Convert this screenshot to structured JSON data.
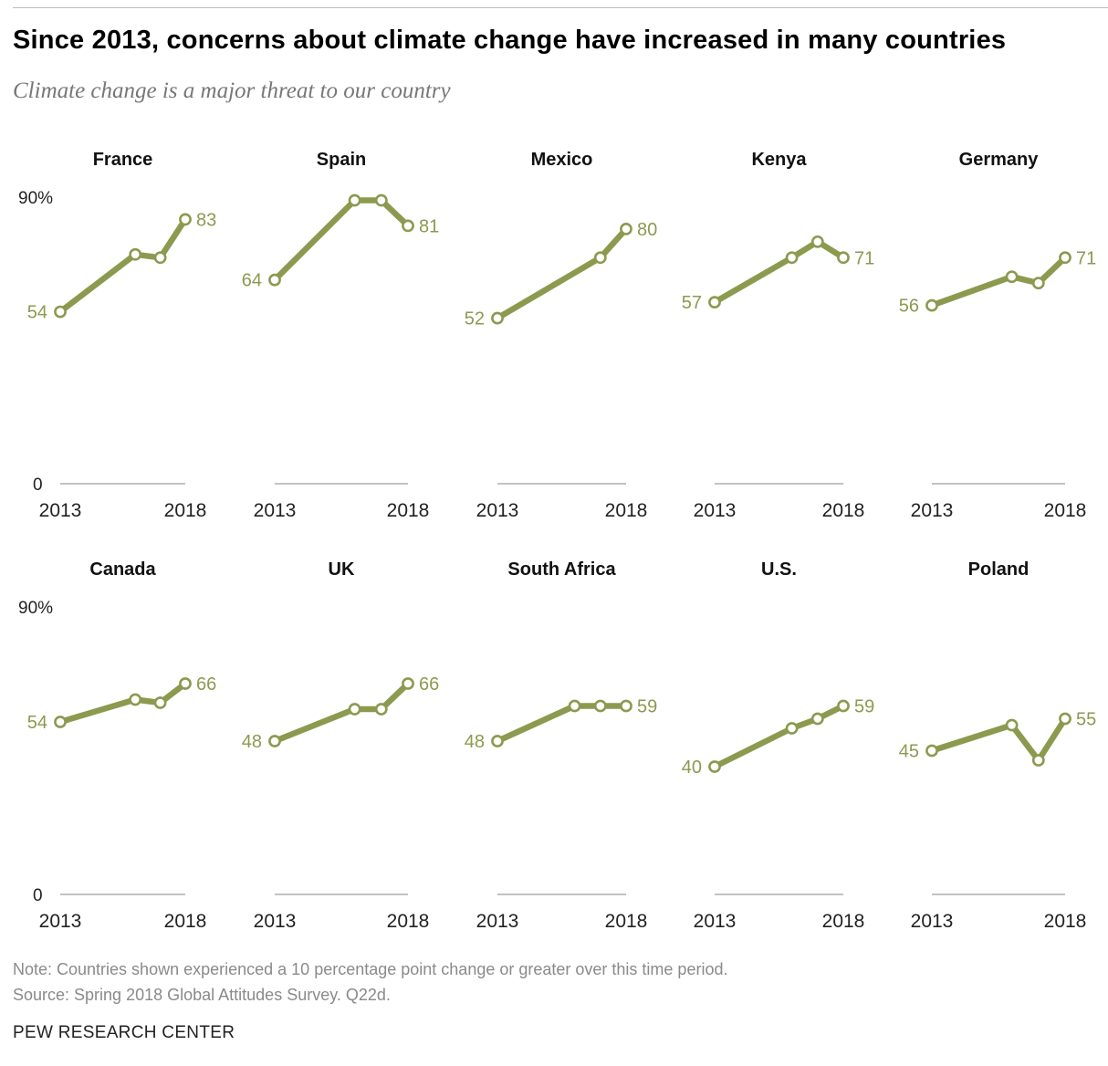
{
  "header": {
    "title": "Since 2013, concerns about climate change have increased in many countries",
    "subtitle": "Climate change is a major threat to our country"
  },
  "footer": {
    "note": "Note: Countries shown experienced a 10 percentage point change or greater over this time period.",
    "source": "Source: Spring 2018 Global Attitudes Survey. Q22d.",
    "organization": "PEW RESEARCH CENTER"
  },
  "colors": {
    "line": "#8c9a4f",
    "label": "#8c9a4f",
    "baseline": "#9e9e9e"
  },
  "chart_data": [
    {
      "type": "line",
      "title": "France",
      "x_tick_labels": [
        "2013",
        "2018"
      ],
      "y_tick_labels": [
        "90%",
        "0"
      ],
      "ylim": [
        0,
        90
      ],
      "x": [
        2013,
        2016,
        2017,
        2018
      ],
      "values": [
        54,
        72,
        71,
        83
      ],
      "labels": {
        "first": "54",
        "last": "83"
      }
    },
    {
      "type": "line",
      "title": "Spain",
      "x_tick_labels": [
        "2013",
        "2018"
      ],
      "ylim": [
        0,
        90
      ],
      "x": [
        2013,
        2016,
        2017,
        2018
      ],
      "values": [
        64,
        89,
        89,
        81
      ],
      "labels": {
        "first": "64",
        "last": "81"
      }
    },
    {
      "type": "line",
      "title": "Mexico",
      "x_tick_labels": [
        "2013",
        "2018"
      ],
      "ylim": [
        0,
        90
      ],
      "x": [
        2013,
        2017,
        2018
      ],
      "values": [
        52,
        71,
        80
      ],
      "labels": {
        "first": "52",
        "last": "80"
      }
    },
    {
      "type": "line",
      "title": "Kenya",
      "x_tick_labels": [
        "2013",
        "2018"
      ],
      "ylim": [
        0,
        90
      ],
      "x": [
        2013,
        2016,
        2017,
        2018
      ],
      "values": [
        57,
        71,
        76,
        71
      ],
      "labels": {
        "first": "57",
        "last": "71"
      }
    },
    {
      "type": "line",
      "title": "Germany",
      "x_tick_labels": [
        "2013",
        "2018"
      ],
      "ylim": [
        0,
        90
      ],
      "x": [
        2013,
        2016,
        2017,
        2018
      ],
      "values": [
        56,
        65,
        63,
        71
      ],
      "labels": {
        "first": "56",
        "last": "71"
      }
    },
    {
      "type": "line",
      "title": "Canada",
      "x_tick_labels": [
        "2013",
        "2018"
      ],
      "y_tick_labels": [
        "90%",
        "0"
      ],
      "ylim": [
        0,
        90
      ],
      "x": [
        2013,
        2016,
        2017,
        2018
      ],
      "values": [
        54,
        61,
        60,
        66
      ],
      "labels": {
        "first": "54",
        "last": "66"
      }
    },
    {
      "type": "line",
      "title": "UK",
      "x_tick_labels": [
        "2013",
        "2018"
      ],
      "ylim": [
        0,
        90
      ],
      "x": [
        2013,
        2016,
        2017,
        2018
      ],
      "values": [
        48,
        58,
        58,
        66
      ],
      "labels": {
        "first": "48",
        "last": "66"
      }
    },
    {
      "type": "line",
      "title": "South Africa",
      "x_tick_labels": [
        "2013",
        "2018"
      ],
      "ylim": [
        0,
        90
      ],
      "x": [
        2013,
        2016,
        2017,
        2018
      ],
      "values": [
        48,
        59,
        59,
        59
      ],
      "labels": {
        "first": "48",
        "last": "59"
      }
    },
    {
      "type": "line",
      "title": "U.S.",
      "x_tick_labels": [
        "2013",
        "2018"
      ],
      "ylim": [
        0,
        90
      ],
      "x": [
        2013,
        2016,
        2017,
        2018
      ],
      "values": [
        40,
        52,
        55,
        59
      ],
      "labels": {
        "first": "40",
        "last": "59"
      }
    },
    {
      "type": "line",
      "title": "Poland",
      "x_tick_labels": [
        "2013",
        "2018"
      ],
      "ylim": [
        0,
        90
      ],
      "x": [
        2013,
        2016,
        2017,
        2018
      ],
      "values": [
        45,
        53,
        42,
        55
      ],
      "labels": {
        "first": "45",
        "last": "55"
      }
    }
  ]
}
